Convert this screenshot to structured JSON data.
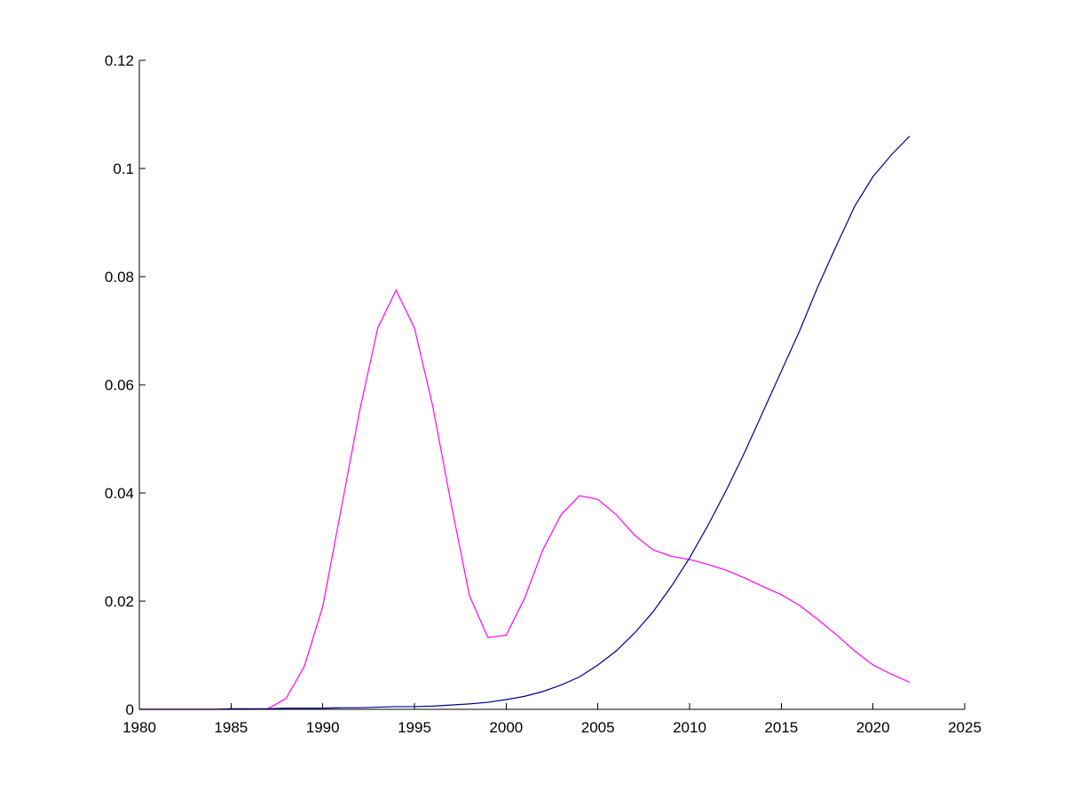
{
  "chart_data": {
    "type": "line",
    "title": "",
    "xlabel": "",
    "ylabel": "",
    "xlim": [
      1980,
      2025
    ],
    "ylim": [
      0,
      0.12
    ],
    "x_ticks": [
      1980,
      1985,
      1990,
      1995,
      2000,
      2005,
      2010,
      2015,
      2020,
      2025
    ],
    "x_tick_labels": [
      "1980",
      "1985",
      "1990",
      "1995",
      "2000",
      "2005",
      "2010",
      "2015",
      "2020",
      "2025"
    ],
    "y_ticks": [
      0,
      0.02,
      0.04,
      0.06,
      0.08,
      0.1,
      0.12
    ],
    "y_tick_labels": [
      "0",
      "0.02",
      "0.04",
      "0.06",
      "0.08",
      "0.1",
      "0.12"
    ],
    "grid": false,
    "x": [
      1980,
      1981,
      1982,
      1983,
      1984,
      1985,
      1986,
      1987,
      1988,
      1989,
      1990,
      1991,
      1992,
      1993,
      1994,
      1995,
      1996,
      1997,
      1998,
      1999,
      2000,
      2001,
      2002,
      2003,
      2004,
      2005,
      2006,
      2007,
      2008,
      2009,
      2010,
      2011,
      2012,
      2013,
      2014,
      2015,
      2016,
      2017,
      2018,
      2019,
      2020,
      2021,
      2022
    ],
    "series": [
      {
        "color": "#ff00ff",
        "values": [
          0,
          0,
          0,
          0,
          0,
          0,
          0,
          0.0001,
          0.002,
          0.008,
          0.019,
          0.037,
          0.055,
          0.0705,
          0.0775,
          0.0705,
          0.056,
          0.038,
          0.021,
          0.0133,
          0.0137,
          0.0205,
          0.0295,
          0.036,
          0.0395,
          0.0388,
          0.036,
          0.0322,
          0.0295,
          0.0283,
          0.0277,
          0.0268,
          0.0257,
          0.0243,
          0.0227,
          0.0212,
          0.0192,
          0.0166,
          0.0138,
          0.0108,
          0.0082,
          0.0065,
          0.005
        ]
      },
      {
        "color": "#00008b",
        "values": [
          0,
          0,
          0,
          0,
          0,
          0.0001,
          0.0001,
          0.0001,
          0.0002,
          0.0002,
          0.0002,
          0.0003,
          0.0003,
          0.0004,
          0.0005,
          0.0005,
          0.0006,
          0.0008,
          0.001,
          0.0013,
          0.0018,
          0.0024,
          0.0033,
          0.0045,
          0.006,
          0.0082,
          0.0108,
          0.0141,
          0.018,
          0.0227,
          0.028,
          0.034,
          0.0405,
          0.0475,
          0.055,
          0.0625,
          0.07,
          0.0782,
          0.0857,
          0.093,
          0.0985,
          0.1025,
          0.106
        ]
      }
    ]
  }
}
